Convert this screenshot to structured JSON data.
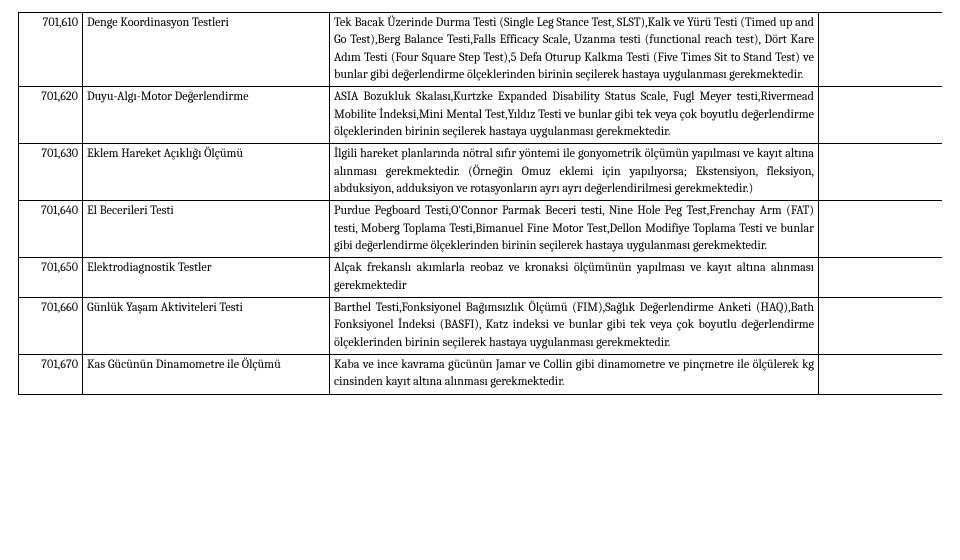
{
  "rows": [
    {
      "code": "701,610",
      "name": "Denge Koordinasyon Testleri",
      "desc": "Tek Bacak Üzerinde Durma Testi (Single Leg Stance Test, SLST),Kalk ve Yürü Testi (Timed up and Go Test),Berg Balance Testi,Falls Efficacy Scale, Uzanma testi (functional reach test), Dört Kare Adım Testi (Four Square Step Test),5 Defa Oturup Kalkma Testi (Five Times Sit to Stand Test) ve bunlar gibi değerlendirme ölçeklerinden birinin seçilerek hastaya uygulanması gerekmektedir."
    },
    {
      "code": "701,620",
      "name": "Duyu-Algı-Motor Değerlendirme",
      "desc": "ASIA Bozukluk Skalası,Kurtzke Expanded Disability Status Scale, Fugl Meyer testi,Rivermead Mobilite İndeksi,Mini Mental Test,Yıldız Testi ve bunlar gibi tek veya çok boyutlu değerlendirme ölçeklerinden birinin seçilerek hastaya uygulanması gerekmektedir."
    },
    {
      "code": "701,630",
      "name": "Eklem Hareket Açıklığı Ölçümü",
      "desc": "İlgili hareket planlarında nötral sıfır yöntemi ile gonyometrik ölçümün yapılması ve kayıt altına alınması gerekmektedir. (Örneğin Omuz eklemi için yapılıyorsa; Ekstensiyon, fleksiyon, abduksiyon, adduksiyon ve rotasyonların ayrı ayrı değerlendirilmesi gerekmektedir.)"
    },
    {
      "code": "701,640",
      "name": "El Becerileri Testi",
      "desc": "Purdue Pegboard Testi,O'Connor Parmak Beceri testi, Nine Hole Peg Test,Frenchay Arm (FAT) testi, Moberg Toplama Testi,Bimanuel Fine Motor Test,Dellon Modifiye Toplama Testi ve bunlar gibi değerlendirme ölçeklerinden birinin seçilerek hastaya uygulanması gerekmektedir."
    },
    {
      "code": "701,650",
      "name": "Elektrodiagnostik Testler",
      "desc": "Alçak frekanslı akımlarla reobaz ve kronaksi ölçümünün yapılması ve kayıt altına alınması gerekmektedir"
    },
    {
      "code": "701,660",
      "name": "Günlük Yaşam Aktiviteleri Testi",
      "desc": "Barthel Testi,Fonksiyonel Bağımsızlık Ölçümü (FIM),Sağlık Değerlendirme Anketi (HAQ),Bath Fonksiyonel İndeksi (BASFI), Katz indeksi ve bunlar gibi tek veya çok boyutlu değerlendirme ölçeklerinden birinin seçilerek hastaya uygulanması gerekmektedir."
    },
    {
      "code": "701,670",
      "name": "Kas Gücünün Dinamometre ile Ölçümü",
      "desc": "Kaba ve ince kavrama gücünün Jamar ve Collin gibi dinamometre ve pinçmetre ile ölçülerek kg cinsinden kayıt altına alınması gerekmektedir."
    }
  ]
}
